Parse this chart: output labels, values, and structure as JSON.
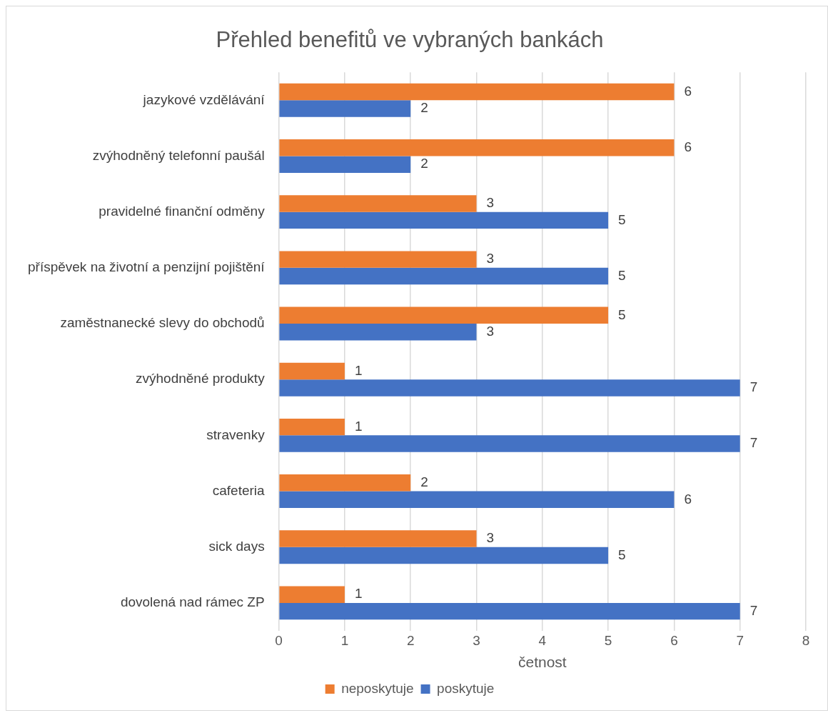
{
  "chart_data": {
    "type": "bar",
    "orientation": "horizontal",
    "title": "Přehled benefitů ve vybraných bankách",
    "xlabel": "četnost",
    "categories": [
      "jazykové vzdělávání",
      "zvýhodněný telefonní paušál",
      "pravidelné finanční odměny",
      "příspěvek na životní a penzijní pojištění",
      "zaměstnanecké slevy do obchodů",
      "zvýhodněné produkty",
      "stravenky",
      "cafeteria",
      "sick days",
      "dovolená nad rámec ZP"
    ],
    "series": [
      {
        "name": "neposkytuje",
        "color": "#ed7d31",
        "values": [
          6,
          6,
          3,
          3,
          5,
          1,
          1,
          2,
          3,
          1
        ]
      },
      {
        "name": "poskytuje",
        "color": "#4472c4",
        "values": [
          2,
          2,
          5,
          5,
          3,
          7,
          7,
          6,
          5,
          7
        ]
      }
    ],
    "xlim": [
      0,
      8
    ],
    "xticks": [
      0,
      1,
      2,
      3,
      4,
      5,
      6,
      7,
      8
    ],
    "grid": "x",
    "legend": "bottom",
    "data_labels": true
  }
}
